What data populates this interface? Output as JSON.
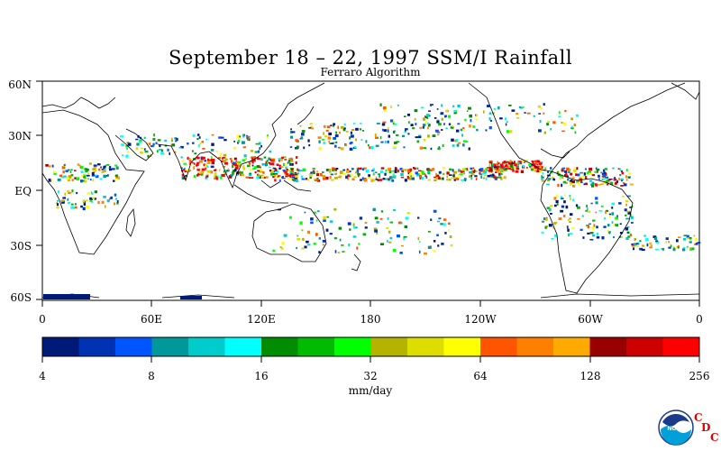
{
  "title": "September 18 – 22, 1997 SSM/I Rainfall",
  "subtitle": "Ferraro Algorithm",
  "lat_labels": [
    "60N",
    "30N",
    "EQ",
    "30S",
    "60S"
  ],
  "lon_labels": [
    "0",
    "60E",
    "120E",
    "180",
    "120W",
    "60W",
    "0"
  ],
  "colorbar": {
    "unit": "mm/day",
    "tick_labels": [
      "4",
      "8",
      "16",
      "32",
      "64",
      "128",
      "256"
    ],
    "colors": [
      "#001a7a",
      "#0033b3",
      "#0055ff",
      "#009999",
      "#00cccc",
      "#00ffff",
      "#008c00",
      "#00bb00",
      "#00ff00",
      "#b3b300",
      "#dddd00",
      "#ffff00",
      "#ff5500",
      "#ff7f00",
      "#ffaa00",
      "#990000",
      "#cc0000",
      "#ff0000"
    ]
  },
  "logo": {
    "icon": "noaa-logo",
    "text": "NOAA",
    "cdc_letters": [
      "C",
      "D",
      "C"
    ]
  }
}
